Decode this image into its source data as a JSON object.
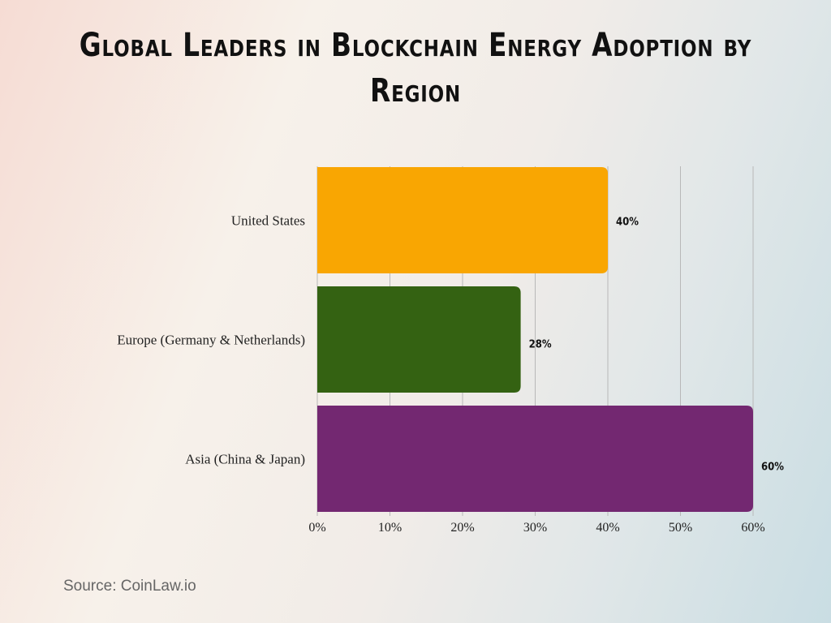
{
  "chart_data": {
    "type": "bar",
    "orientation": "horizontal",
    "title": "Global Leaders in Blockchain Energy Adoption by Region",
    "categories": [
      "United States",
      "Europe (Germany & Netherlands)",
      "Asia (China & Japan)"
    ],
    "values": [
      40,
      28,
      60
    ],
    "data_labels": [
      "40%",
      "28%",
      "60%"
    ],
    "colors": [
      "#F9A602",
      "#346212",
      "#732871"
    ],
    "xlim": [
      0,
      60
    ],
    "xticks": [
      "0%",
      "10%",
      "20%",
      "30%",
      "40%",
      "50%",
      "60%"
    ],
    "xlabel": "",
    "ylabel": "",
    "grid": "vertical"
  },
  "source": "Source: CoinLaw.io"
}
